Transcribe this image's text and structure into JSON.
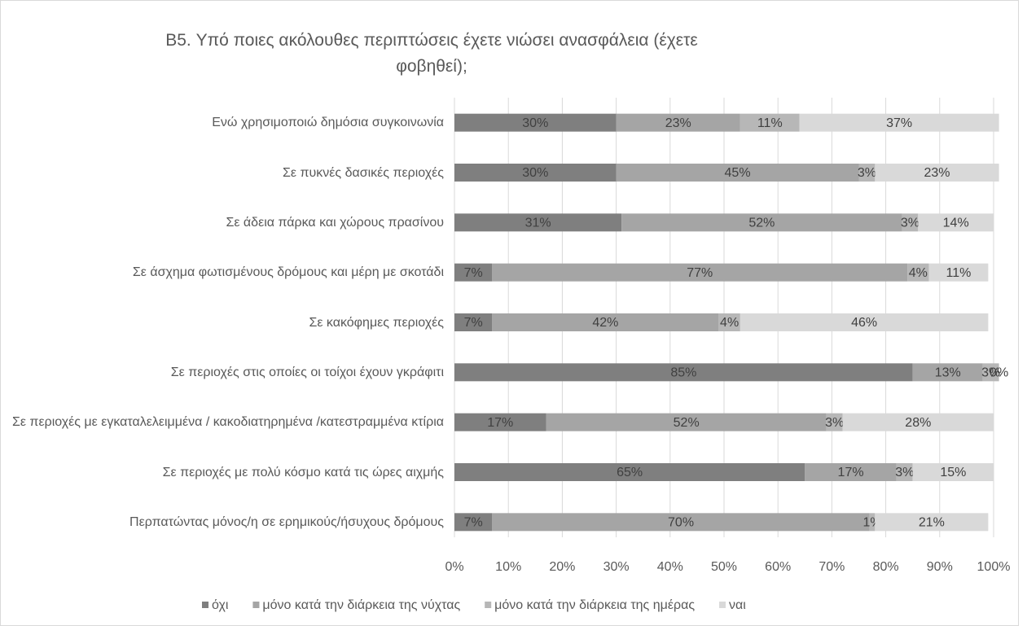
{
  "chart_data": {
    "type": "stacked_barh",
    "title": "B5. Υπό ποιες ακόλουθες περιπτώσεις έχετε νιώσει ανασφάλεια (έχετε φοβηθεί);",
    "categories": [
      "Ενώ χρησιμοποιώ δημόσια συγκοινωνία",
      "Σε πυκνές δασικές περιοχές",
      "Σε άδεια πάρκα και χώρους πρασίνου",
      "Σε άσχημα φωτισμένους δρόμους και μέρη με σκοτάδι",
      "Σε κακόφημες περιοχές",
      "Σε περιοχές στις οποίες οι τοίχοι έχουν γκράφιτι",
      "Σε περιοχές με εγκαταλελειμμένα / κακοδιατηρημένα /κατεστραμμένα κτίρια",
      "Σε περιοχές με πολύ κόσμο κατά τις ώρες αιχμής",
      "Περπατώντας μόνος/η σε ερημικούς/ήσυχους δρόμους"
    ],
    "series": [
      {
        "name": "όχι",
        "color": "#7f7f7f",
        "values": [
          30,
          30,
          31,
          7,
          7,
          85,
          17,
          65,
          7
        ],
        "value_labels": [
          "30%",
          "30%",
          "31%",
          "7%",
          "7%",
          "85%",
          "17%",
          "65%",
          "7%"
        ]
      },
      {
        "name": "μόνο κατά την διάρκεια της νύχτας",
        "color": "#a5a5a5",
        "values": [
          23,
          45,
          52,
          77,
          42,
          13,
          52,
          17,
          70
        ],
        "value_labels": [
          "23%",
          "45%",
          "52%",
          "77%",
          "42%",
          "13%",
          "52%",
          "17%",
          "70%"
        ]
      },
      {
        "name": "μόνο κατά την διάρκεια της ημέρας",
        "color": "#b7b7b7",
        "values": [
          11,
          3,
          3,
          4,
          4,
          3,
          3,
          3,
          1
        ],
        "value_labels": [
          "11%",
          "3%",
          "3%",
          "4%",
          "4%",
          "3%",
          "3%",
          "3%",
          "1%"
        ]
      },
      {
        "name": "ναι",
        "color": "#d9d9d9",
        "values": [
          37,
          23,
          14,
          11,
          46,
          0,
          28,
          15,
          21
        ],
        "value_labels": [
          "37%",
          "23%",
          "14%",
          "11%",
          "46%",
          "0%",
          "28%",
          "15%",
          "21%"
        ]
      }
    ],
    "xlim": [
      0,
      100
    ],
    "xticks": [
      {
        "value": 0,
        "label": "0%"
      },
      {
        "value": 10,
        "label": "10%"
      },
      {
        "value": 20,
        "label": "20%"
      },
      {
        "value": 30,
        "label": "30%"
      },
      {
        "value": 40,
        "label": "40%"
      },
      {
        "value": 50,
        "label": "50%"
      },
      {
        "value": 60,
        "label": "60%"
      },
      {
        "value": 70,
        "label": "70%"
      },
      {
        "value": 80,
        "label": "80%"
      },
      {
        "value": 90,
        "label": "90%"
      },
      {
        "value": 100,
        "label": "100%"
      }
    ],
    "grid": true,
    "legend": "bottom"
  }
}
